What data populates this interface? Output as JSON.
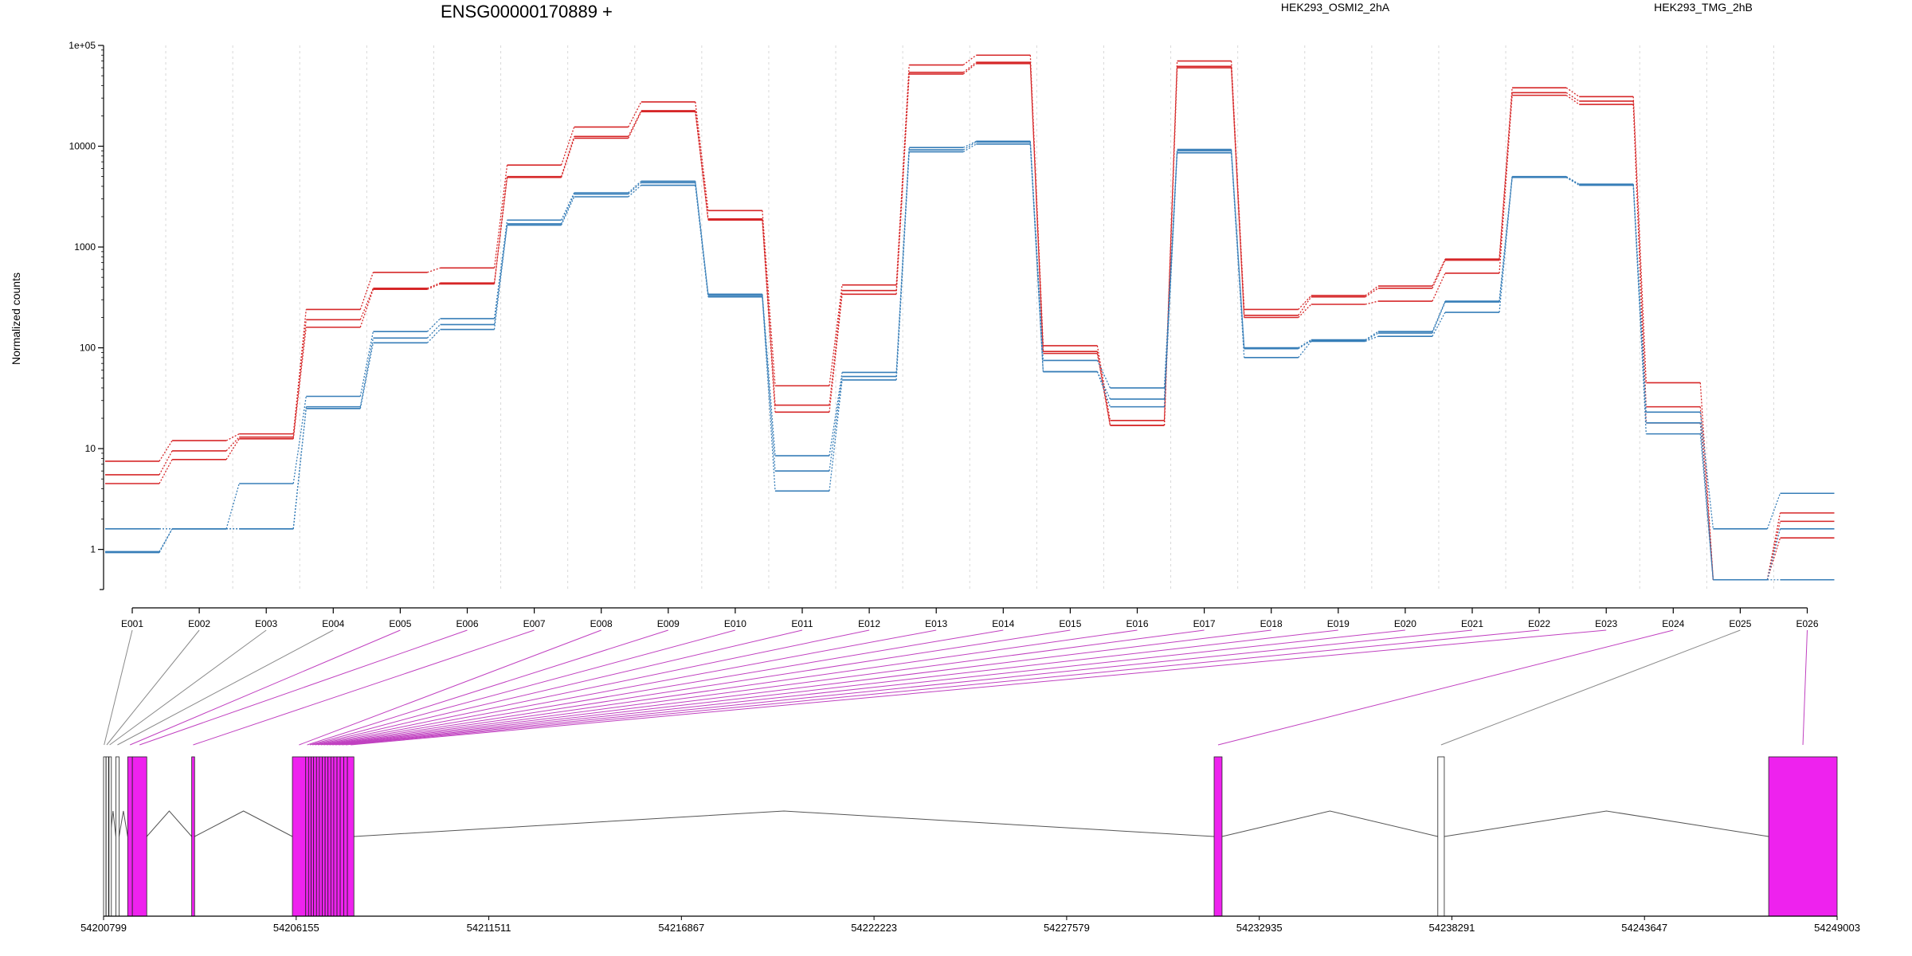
{
  "chart_data": {
    "type": "line",
    "title": "ENSG00000170889 +",
    "ylabel": "Normalized counts",
    "yscale": "log",
    "ylim": [
      0.4,
      100000
    ],
    "yticks": [
      "1e+05",
      "10000",
      "1000",
      "100",
      "10",
      "1"
    ],
    "ytick_values": [
      100000,
      10000,
      1000,
      100,
      10,
      1
    ],
    "categories": [
      "E001",
      "E002",
      "E003",
      "E004",
      "E005",
      "E006",
      "E007",
      "E008",
      "E009",
      "E010",
      "E011",
      "E012",
      "E013",
      "E014",
      "E015",
      "E016",
      "E017",
      "E018",
      "E019",
      "E020",
      "E021",
      "E022",
      "E023",
      "E024",
      "E025",
      "E026"
    ],
    "legend": [
      {
        "name": "HEK293_OSMI2_2hA",
        "color": "#d62728"
      },
      {
        "name": "HEK293_TMG_2hB",
        "color": "#377eb8"
      }
    ],
    "series": [
      {
        "group": "HEK293_OSMI2_2hA",
        "color": "#d62728",
        "values": [
          7.5,
          12,
          14,
          240,
          560,
          620,
          6500,
          15500,
          27500,
          2300,
          42,
          420,
          64000,
          80000,
          105,
          19,
          70000,
          240,
          330,
          410,
          760,
          38000,
          31000,
          45,
          0.5,
          2.3
        ]
      },
      {
        "group": "HEK293_OSMI2_2hA",
        "color": "#d62728",
        "values": [
          5.5,
          9.5,
          13,
          190,
          390,
          440,
          5000,
          12500,
          22500,
          1900,
          27,
          370,
          54000,
          68000,
          92,
          17,
          62000,
          210,
          320,
          390,
          740,
          34000,
          28000,
          26,
          0.5,
          1.9
        ]
      },
      {
        "group": "HEK293_OSMI2_2hA",
        "color": "#d62728",
        "values": [
          4.5,
          7.8,
          12.5,
          160,
          380,
          430,
          4900,
          12000,
          22000,
          1850,
          23,
          340,
          52000,
          66000,
          88,
          17,
          60000,
          200,
          270,
          290,
          550,
          32000,
          26000,
          18,
          0.5,
          1.3
        ]
      },
      {
        "group": "HEK293_TMG_2hB",
        "color": "#377eb8",
        "values": [
          1.6,
          1.6,
          4.5,
          33,
          145,
          195,
          1850,
          3450,
          4500,
          340,
          8.5,
          57,
          9700,
          11200,
          75,
          40,
          9300,
          100,
          120,
          145,
          290,
          5000,
          4200,
          23,
          1.6,
          3.6
        ]
      },
      {
        "group": "HEK293_TMG_2hB",
        "color": "#377eb8",
        "values": [
          0.95,
          1.6,
          1.6,
          26,
          125,
          170,
          1700,
          3350,
          4350,
          330,
          6,
          52,
          9200,
          11000,
          58,
          31,
          9000,
          98,
          118,
          140,
          285,
          4950,
          4150,
          18,
          0.5,
          1.6
        ]
      },
      {
        "group": "HEK293_TMG_2hB",
        "color": "#377eb8",
        "values": [
          0.93,
          1.6,
          1.6,
          25,
          112,
          152,
          1650,
          3150,
          4100,
          320,
          3.8,
          48,
          8800,
          10500,
          58,
          26,
          8600,
          80,
          116,
          130,
          225,
          4900,
          4100,
          14,
          0.5,
          0.5
        ]
      }
    ],
    "gene_model": {
      "coordinate_ticks": [
        "54200799",
        "54206155",
        "54211511",
        "54216867",
        "54222223",
        "54227579",
        "54232935",
        "54238291",
        "54243647",
        "54249003"
      ],
      "coordinate_tick_values": [
        54200799,
        54206155,
        54211511,
        54216867,
        54222223,
        54227579,
        54232935,
        54238291,
        54243647,
        54249003
      ],
      "xlim": [
        54200799,
        54249003
      ],
      "highlight_color": "#ee22ee",
      "exons": [
        {
          "id": "E001",
          "start": 54200799,
          "end": 54200830,
          "hl": false
        },
        {
          "id": "E002",
          "start": 54200870,
          "end": 54200905,
          "hl": false
        },
        {
          "id": "E003",
          "start": 54200950,
          "end": 54200985,
          "hl": false
        },
        {
          "id": "E004",
          "start": 54201140,
          "end": 54201230,
          "hl": false
        },
        {
          "id": "E005",
          "start": 54201470,
          "end": 54201600,
          "hl": true
        },
        {
          "id": "E006",
          "start": 54201600,
          "end": 54202000,
          "hl": true
        },
        {
          "id": "E007",
          "start": 54203250,
          "end": 54203330,
          "hl": true
        },
        {
          "id": "E008",
          "start": 54206050,
          "end": 54206420,
          "hl": true
        },
        {
          "id": "E009",
          "start": 54206420,
          "end": 54206500,
          "hl": true
        },
        {
          "id": "E010",
          "start": 54206500,
          "end": 54206570,
          "hl": true
        },
        {
          "id": "E011",
          "start": 54206570,
          "end": 54206640,
          "hl": true
        },
        {
          "id": "E012",
          "start": 54206640,
          "end": 54206720,
          "hl": true
        },
        {
          "id": "E013",
          "start": 54206720,
          "end": 54206800,
          "hl": true
        },
        {
          "id": "E014",
          "start": 54206800,
          "end": 54206880,
          "hl": true
        },
        {
          "id": "E015",
          "start": 54206880,
          "end": 54206960,
          "hl": true
        },
        {
          "id": "E016",
          "start": 54206960,
          "end": 54207040,
          "hl": true
        },
        {
          "id": "E017",
          "start": 54207040,
          "end": 54207120,
          "hl": true
        },
        {
          "id": "E018",
          "start": 54207120,
          "end": 54207200,
          "hl": true
        },
        {
          "id": "E019",
          "start": 54207200,
          "end": 54207290,
          "hl": true
        },
        {
          "id": "E020",
          "start": 54207290,
          "end": 54207380,
          "hl": true
        },
        {
          "id": "E021",
          "start": 54207380,
          "end": 54207480,
          "hl": true
        },
        {
          "id": "E022",
          "start": 54207480,
          "end": 54207580,
          "hl": true
        },
        {
          "id": "E023",
          "start": 54207580,
          "end": 54207760,
          "hl": true
        },
        {
          "id": "E024",
          "start": 54231680,
          "end": 54231900,
          "hl": true
        },
        {
          "id": "E025",
          "start": 54237900,
          "end": 54238080,
          "hl": false
        },
        {
          "id": "E026",
          "start": 54247100,
          "end": 54249003,
          "hl": true
        }
      ]
    }
  }
}
